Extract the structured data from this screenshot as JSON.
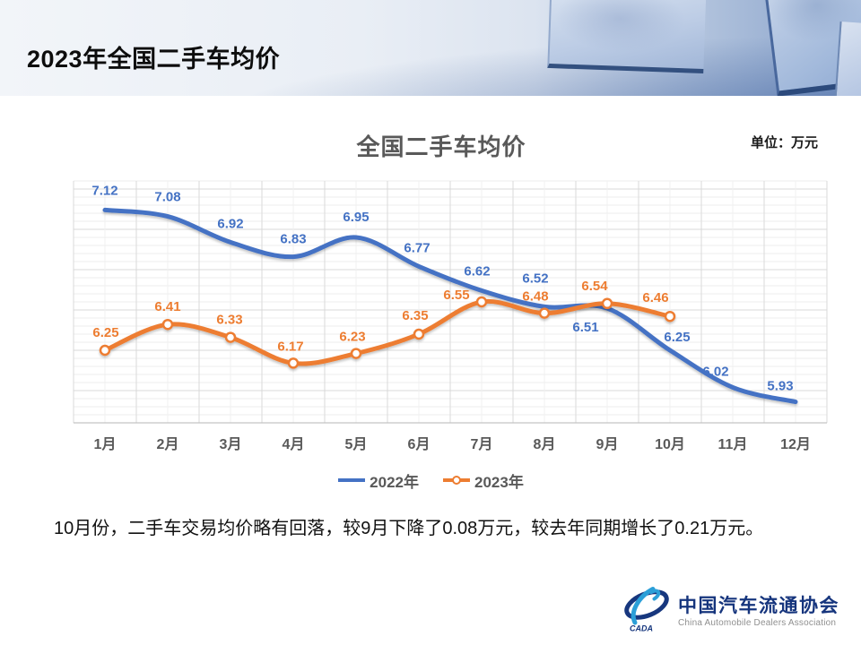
{
  "header": {
    "title": "2023年全国二手车均价"
  },
  "chart": {
    "title": "全国二手车均价",
    "unit_label": "单位：万元"
  },
  "chart_data": {
    "type": "line",
    "title": "全国二手车均价",
    "categories": [
      "1月",
      "2月",
      "3月",
      "4月",
      "5月",
      "6月",
      "7月",
      "8月",
      "9月",
      "10月",
      "11月",
      "12月"
    ],
    "series": [
      {
        "name": "2022年",
        "color": "#4472C4",
        "values": [
          7.12,
          7.08,
          6.92,
          6.83,
          6.95,
          6.77,
          6.62,
          6.52,
          6.51,
          6.25,
          6.02,
          5.93
        ],
        "smooth": true,
        "markers": false
      },
      {
        "name": "2023年",
        "color": "#ED7D31",
        "values": [
          6.25,
          6.41,
          6.33,
          6.17,
          6.23,
          6.35,
          6.55,
          6.48,
          6.54,
          6.46
        ],
        "smooth": true,
        "markers": "white-circle"
      }
    ],
    "ylim": [
      5.8,
      7.3
    ],
    "grid": "fine horizontal and vertical gridlines, no y-axis labels",
    "legend_position": "bottom",
    "data_labels": true,
    "axis_label_color": "#595959"
  },
  "footnote": "10月份，二手车交易均价略有回落，较9月下降了0.08万元，较去年同期增长了0.21万元。",
  "logo": {
    "cn": "中国汽车流通协会",
    "en": "China Automobile Dealers Association",
    "emblem_text": "CADA",
    "navy": "#17377e",
    "light_blue": "#2b9fd8"
  }
}
